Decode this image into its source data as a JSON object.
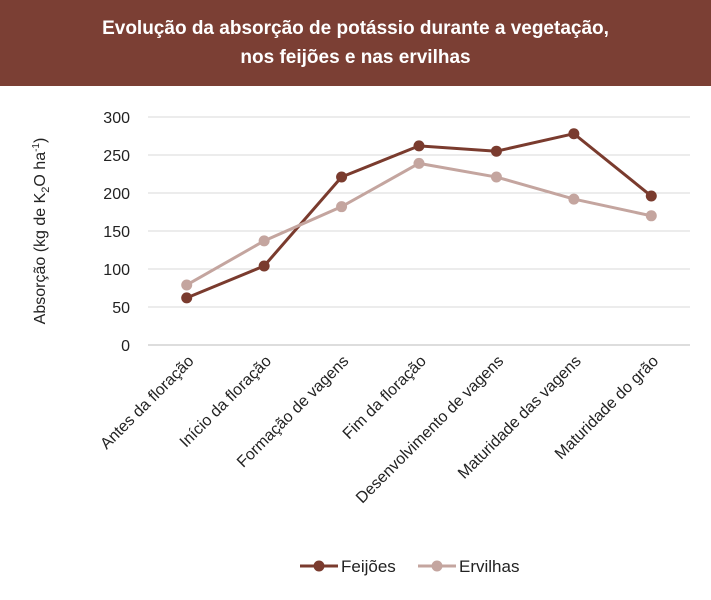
{
  "chart_data": {
    "type": "line",
    "title_line1": "Evolução da absorção de potássio durante a vegetação,",
    "title_line2": "nos feijões e nas ervilhas",
    "ylabel_parts": [
      "Absorção (kg de K",
      "2",
      "O ha",
      "-1",
      ")"
    ],
    "xlabel": "",
    "categories": [
      "Antes da floração",
      "Início da floração",
      "Formação de vagens",
      "Fim da floração",
      "Desenvolvimento de vagens",
      "Maturidade das vagens",
      "Maturidade do grão"
    ],
    "ylim": [
      0,
      300
    ],
    "yticks": [
      0,
      50,
      100,
      150,
      200,
      250,
      300
    ],
    "grid": true,
    "legend_position": "bottom",
    "series": [
      {
        "name": "Feijões",
        "color": "#7a3b2e",
        "values": [
          62,
          104,
          221,
          262,
          255,
          278,
          196
        ]
      },
      {
        "name": "Ervilhas",
        "color": "#c4a59f",
        "values": [
          79,
          137,
          182,
          239,
          221,
          192,
          170
        ]
      }
    ]
  }
}
